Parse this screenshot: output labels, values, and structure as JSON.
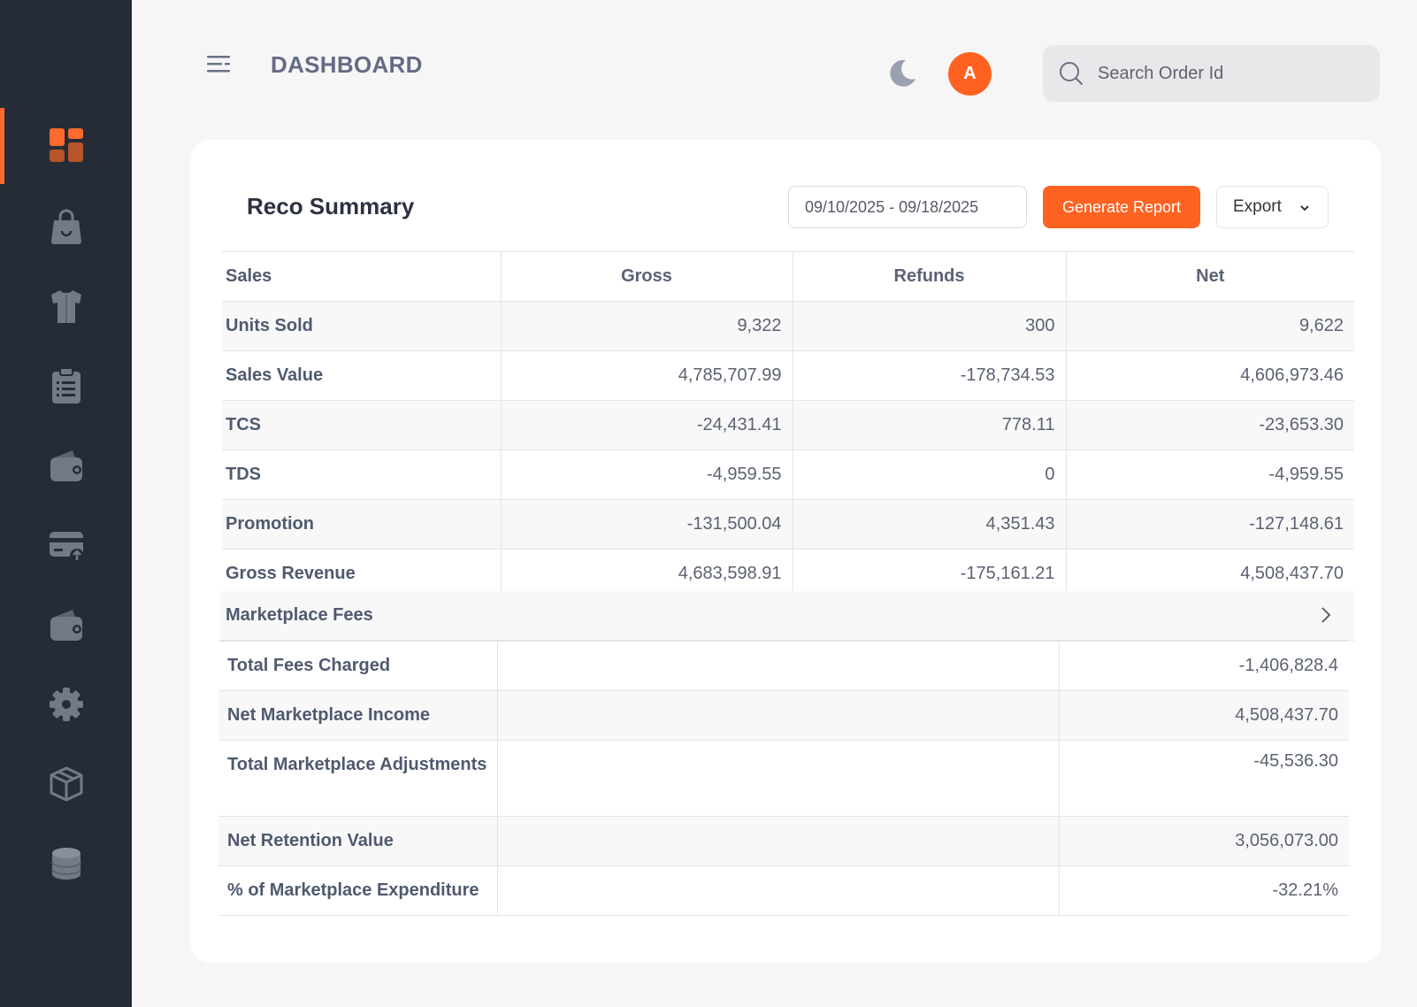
{
  "header": {
    "title": "DASHBOARD",
    "avatar_initial": "A",
    "search_placeholder": "Search Order Id"
  },
  "sidebar": {
    "items": [
      {
        "icon": "dashboard-icon",
        "active": true
      },
      {
        "icon": "shopping-bag-icon",
        "active": false
      },
      {
        "icon": "tshirt-icon",
        "active": false
      },
      {
        "icon": "clipboard-list-icon",
        "active": false
      },
      {
        "icon": "wallet-icon",
        "active": false
      },
      {
        "icon": "card-upload-icon",
        "active": false
      },
      {
        "icon": "wallet-icon",
        "active": false
      },
      {
        "icon": "gear-icon",
        "active": false
      },
      {
        "icon": "package-icon",
        "active": false
      },
      {
        "icon": "database-icon",
        "active": false
      }
    ]
  },
  "colors": {
    "accent": "#ff6221",
    "sidebar_bg": "#262c36",
    "page_bg": "#f7f6f7"
  },
  "card": {
    "title": "Reco Summary",
    "date_range": "09/10/2025 - 09/18/2025",
    "generate_label": "Generate Report",
    "export_label": "Export"
  },
  "sales_table": {
    "headers": [
      "Sales",
      "Gross",
      "Refunds",
      "Net"
    ],
    "rows": [
      {
        "label": "Units Sold",
        "gross": "9,322",
        "refunds": "300",
        "net": "9,622"
      },
      {
        "label": "Sales Value",
        "gross": "4,785,707.99",
        "refunds": "-178,734.53",
        "net": "4,606,973.46"
      },
      {
        "label": "TCS",
        "gross": "-24,431.41",
        "refunds": "778.11",
        "net": "-23,653.30"
      },
      {
        "label": "TDS",
        "gross": "-4,959.55",
        "refunds": "0",
        "net": "-4,959.55"
      },
      {
        "label": "Promotion",
        "gross": "-131,500.04",
        "refunds": "4,351.43",
        "net": "-127,148.61"
      },
      {
        "label": "Gross Revenue",
        "gross": "4,683,598.91",
        "refunds": "-175,161.21",
        "net": "4,508,437.70"
      }
    ]
  },
  "marketplace_fees_label": "Marketplace Fees",
  "summary_table": {
    "rows": [
      {
        "label": "Total Fees Charged",
        "value": "-1,406,828.4"
      },
      {
        "label": "Net Marketplace Income",
        "value": "4,508,437.70"
      },
      {
        "label": "Total Marketplace Adjustments",
        "value": "-45,536.30"
      },
      {
        "label": "Net Retention Value",
        "value": "3,056,073.00"
      },
      {
        "label": "% of Marketplace Expenditure",
        "value": "-32.21%"
      }
    ]
  }
}
